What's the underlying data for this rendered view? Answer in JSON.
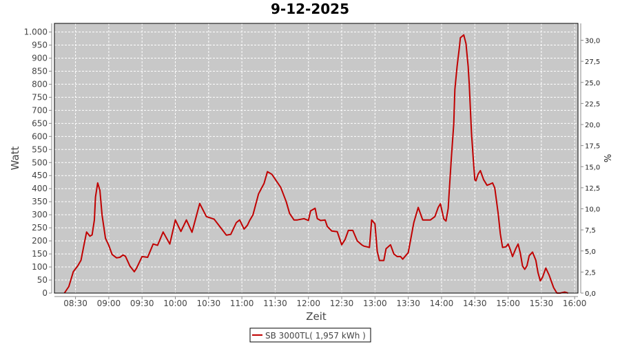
{
  "chart_data": {
    "type": "line",
    "title": "9-12-2025",
    "xlabel": "Zeit",
    "ylabel": "Watt",
    "y2label": "%",
    "xlim": [
      "08:11",
      "16:03"
    ],
    "ylim": [
      0,
      1033
    ],
    "y2lim": [
      0,
      32.0
    ],
    "grid": true,
    "legend_position": "bottom",
    "colors": {
      "series": "#c00000",
      "plot_background": "#c8c8c8",
      "grid": "#ffffff"
    },
    "x_ticks": [
      "08:30",
      "09:00",
      "09:30",
      "10:00",
      "10:30",
      "11:00",
      "11:30",
      "12:00",
      "12:30",
      "13:00",
      "13:30",
      "14:00",
      "14:30",
      "15:00",
      "15:30",
      "16:00"
    ],
    "y_ticks": [
      {
        "v": 0,
        "label": "0"
      },
      {
        "v": 50,
        "label": "50"
      },
      {
        "v": 100,
        "label": "100"
      },
      {
        "v": 150,
        "label": "150"
      },
      {
        "v": 200,
        "label": "200"
      },
      {
        "v": 250,
        "label": "250"
      },
      {
        "v": 300,
        "label": "300"
      },
      {
        "v": 350,
        "label": "350"
      },
      {
        "v": 400,
        "label": "400"
      },
      {
        "v": 450,
        "label": "450"
      },
      {
        "v": 500,
        "label": "500"
      },
      {
        "v": 550,
        "label": "550"
      },
      {
        "v": 600,
        "label": "600"
      },
      {
        "v": 650,
        "label": "650"
      },
      {
        "v": 700,
        "label": "700"
      },
      {
        "v": 750,
        "label": "750"
      },
      {
        "v": 800,
        "label": "800"
      },
      {
        "v": 850,
        "label": "850"
      },
      {
        "v": 900,
        "label": "900"
      },
      {
        "v": 950,
        "label": "950"
      },
      {
        "v": 1000,
        "label": "1.000"
      }
    ],
    "y2_ticks": [
      {
        "v": 0,
        "label": "0,0"
      },
      {
        "v": 2.5,
        "label": "2,5"
      },
      {
        "v": 5,
        "label": "5,0"
      },
      {
        "v": 7.5,
        "label": "7,5"
      },
      {
        "v": 10,
        "label": "10,0"
      },
      {
        "v": 12.5,
        "label": "12,5"
      },
      {
        "v": 15,
        "label": "15,0"
      },
      {
        "v": 17.5,
        "label": "17,5"
      },
      {
        "v": 20,
        "label": "20,0"
      },
      {
        "v": 22.5,
        "label": "22,5"
      },
      {
        "v": 25,
        "label": "25,0"
      },
      {
        "v": 27.5,
        "label": "27,5"
      },
      {
        "v": 30,
        "label": "30,0"
      }
    ],
    "series": [
      {
        "name": "SB 3000TL( 1,957 kWh )",
        "x": [
          "08:20",
          "08:24",
          "08:28",
          "08:32",
          "08:35",
          "08:38",
          "08:40",
          "08:43",
          "08:45",
          "08:47",
          "08:48",
          "08:50",
          "08:52",
          "08:54",
          "08:57",
          "09:00",
          "09:03",
          "09:07",
          "09:10",
          "09:13",
          "09:15",
          "09:19",
          "09:23",
          "09:25",
          "09:30",
          "09:35",
          "09:40",
          "09:44",
          "09:49",
          "09:55",
          "10:00",
          "10:05",
          "10:10",
          "10:15",
          "10:22",
          "10:28",
          "10:35",
          "10:41",
          "10:46",
          "10:50",
          "10:55",
          "10:58",
          "11:02",
          "11:05",
          "11:07",
          "11:10",
          "11:15",
          "11:20",
          "11:23",
          "11:27",
          "11:35",
          "11:40",
          "11:43",
          "11:47",
          "11:50",
          "11:56",
          "12:00",
          "12:02",
          "12:06",
          "12:08",
          "12:11",
          "12:15",
          "12:17",
          "12:21",
          "12:26",
          "12:30",
          "12:33",
          "12:36",
          "12:40",
          "12:44",
          "12:48",
          "12:50",
          "12:55",
          "12:57",
          "13:00",
          "13:02",
          "13:04",
          "13:08",
          "13:10",
          "13:14",
          "13:17",
          "13:20",
          "13:23",
          "13:25",
          "13:30",
          "13:35",
          "13:39",
          "13:43",
          "13:47",
          "13:50",
          "13:54",
          "13:57",
          "13:59",
          "14:02",
          "14:04",
          "14:06",
          "14:07",
          "14:09",
          "14:11",
          "14:12",
          "14:14",
          "14:16",
          "14:17",
          "14:20",
          "14:22",
          "14:24",
          "14:25",
          "14:27",
          "14:29",
          "14:30",
          "14:31",
          "14:33",
          "14:35",
          "14:38",
          "14:41",
          "14:43",
          "14:46",
          "14:48",
          "14:51",
          "14:53",
          "14:55",
          "14:58",
          "15:00",
          "15:02",
          "15:04",
          "15:07",
          "15:09",
          "15:11",
          "15:13",
          "15:15",
          "15:17",
          "15:19",
          "15:22",
          "15:25",
          "15:27",
          "15:29",
          "15:31",
          "15:34",
          "15:37",
          "15:41",
          "15:44",
          "15:47",
          "15:51",
          "15:54"
        ],
        "values": [
          0,
          25,
          82,
          104,
          126,
          192,
          234,
          218,
          223,
          280,
          368,
          422,
          394,
          298,
          210,
          183,
          148,
          135,
          137,
          146,
          141,
          104,
          82,
          95,
          140,
          137,
          188,
          183,
          234,
          188,
          280,
          236,
          280,
          233,
          343,
          293,
          283,
          250,
          222,
          225,
          270,
          280,
          245,
          260,
          278,
          300,
          380,
          420,
          465,
          455,
          405,
          350,
          305,
          280,
          280,
          285,
          278,
          315,
          325,
          285,
          278,
          280,
          255,
          238,
          235,
          185,
          205,
          240,
          240,
          200,
          185,
          180,
          175,
          280,
          265,
          160,
          125,
          125,
          170,
          185,
          150,
          140,
          140,
          130,
          155,
          270,
          328,
          280,
          280,
          280,
          293,
          328,
          342,
          284,
          276,
          324,
          394,
          526,
          649,
          780,
          868,
          938,
          978,
          989,
          956,
          868,
          798,
          614,
          491,
          434,
          430,
          456,
          469,
          434,
          413,
          416,
          422,
          403,
          306,
          227,
          175,
          177,
          188,
          166,
          140,
          171,
          188,
          153,
          104,
          91,
          104,
          143,
          157,
          126,
          78,
          47,
          60,
          96,
          69,
          21,
          0,
          0,
          4,
          0
        ]
      }
    ]
  }
}
